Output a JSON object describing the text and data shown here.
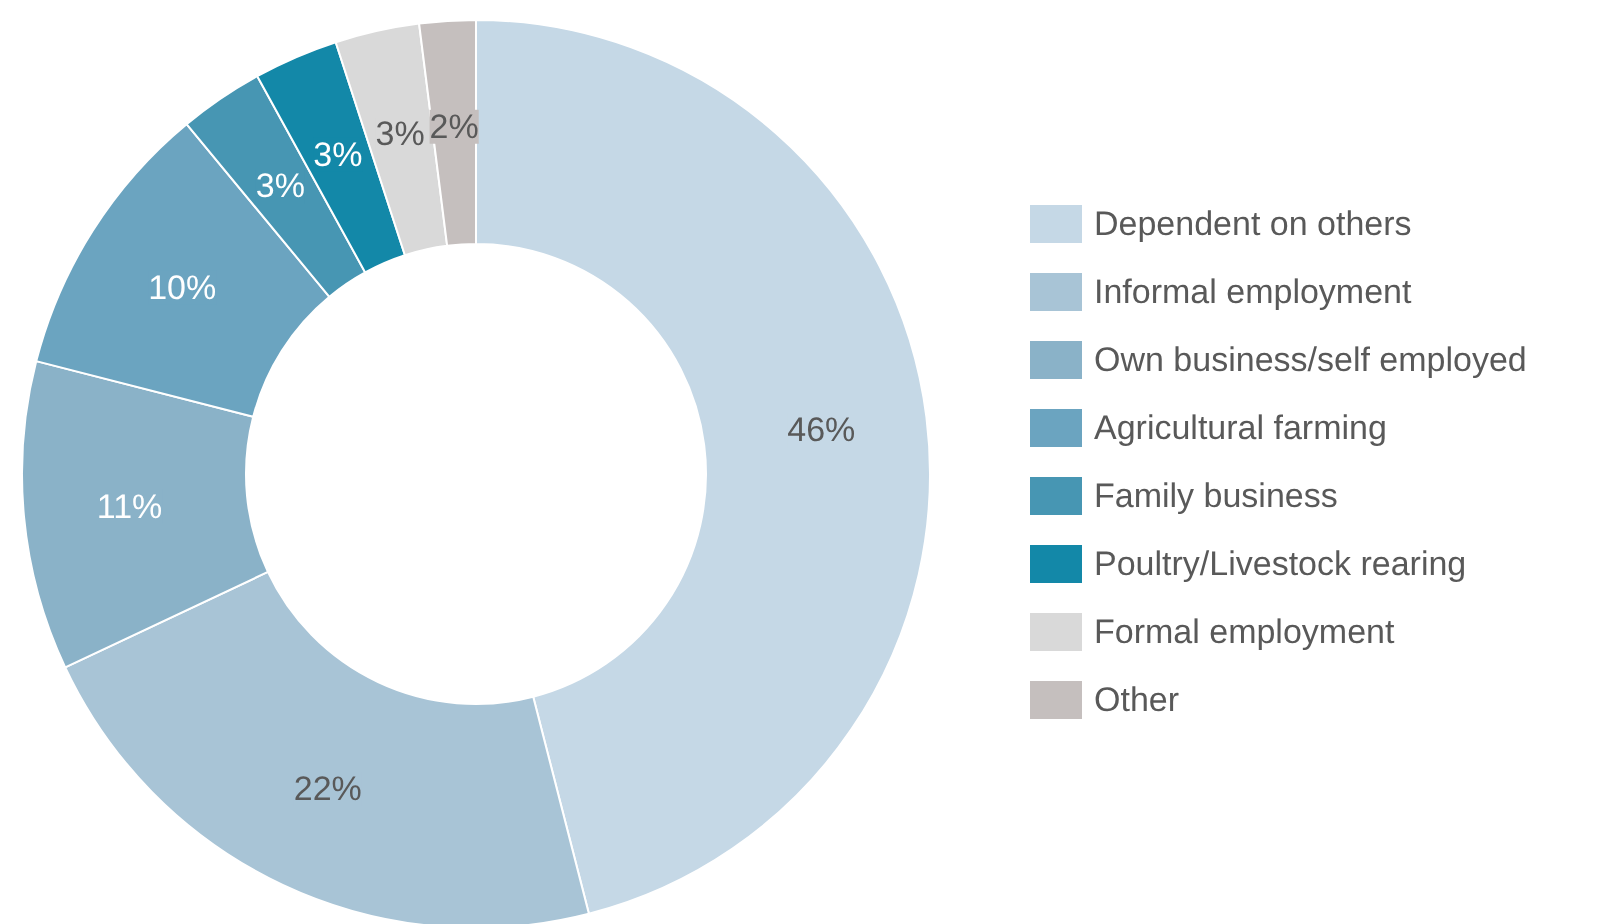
{
  "chart_data": {
    "type": "donut",
    "categories": [
      "Dependent on others",
      "Informal employment",
      "Own business/self employed",
      "Agricultural farming",
      "Family business",
      "Poultry/Livestock rearing",
      "Formal employment",
      "Other"
    ],
    "values": [
      46,
      22,
      11,
      10,
      3,
      3,
      3,
      2
    ],
    "value_labels": [
      "46%",
      "22%",
      "11%",
      "10%",
      "3%",
      "3%",
      "3%",
      "2%"
    ],
    "colors": [
      "#c5d8e6",
      "#a8c4d6",
      "#8ab2c8",
      "#6ba4c0",
      "#4796b3",
      "#1388a8",
      "#d9d9d9",
      "#c5bfbe"
    ],
    "legend": "right"
  }
}
